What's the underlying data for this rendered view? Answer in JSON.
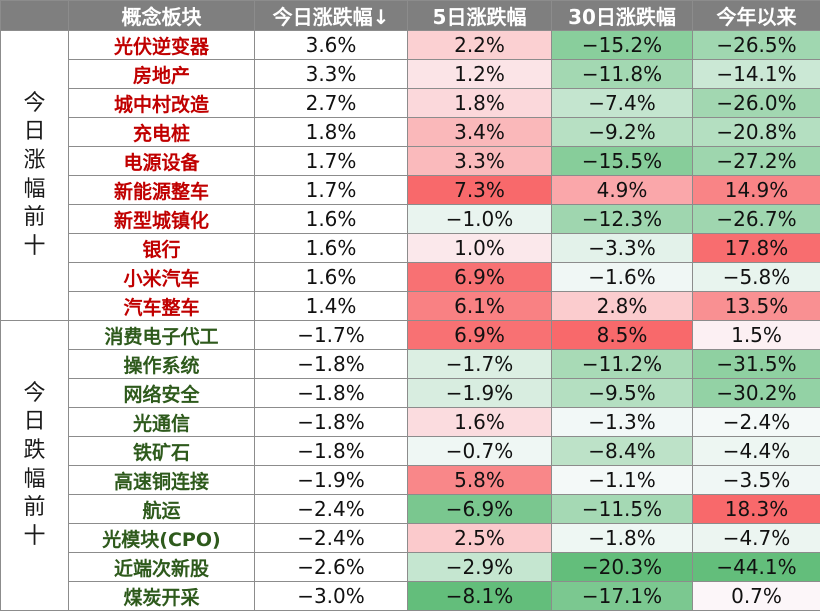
{
  "headers": [
    "概念板块",
    "今日涨跌幅↓",
    "5日涨跌幅",
    "30日涨跌幅",
    "今年以来"
  ],
  "sections": [
    {
      "label": "今日涨幅前十",
      "name_color": "#c00000",
      "rows": [
        {
          "name": "光伏逆变器",
          "d1": "3.6%",
          "d5": "2.2%",
          "d30": "−15.2%",
          "ytd": "−26.5%"
        },
        {
          "name": "房地产",
          "d1": "3.3%",
          "d5": "1.2%",
          "d30": "−11.8%",
          "ytd": "−14.1%"
        },
        {
          "name": "城中村改造",
          "d1": "2.7%",
          "d5": "1.8%",
          "d30": "−7.4%",
          "ytd": "−26.0%"
        },
        {
          "name": "充电桩",
          "d1": "1.8%",
          "d5": "3.4%",
          "d30": "−9.2%",
          "ytd": "−20.8%"
        },
        {
          "name": "电源设备",
          "d1": "1.7%",
          "d5": "3.3%",
          "d30": "−15.5%",
          "ytd": "−27.2%"
        },
        {
          "name": "新能源整车",
          "d1": "1.7%",
          "d5": "7.3%",
          "d30": "4.9%",
          "ytd": "14.9%"
        },
        {
          "name": "新型城镇化",
          "d1": "1.6%",
          "d5": "−1.0%",
          "d30": "−12.3%",
          "ytd": "−26.7%"
        },
        {
          "name": "银行",
          "d1": "1.6%",
          "d5": "1.0%",
          "d30": "−3.3%",
          "ytd": "17.8%"
        },
        {
          "name": "小米汽车",
          "d1": "1.6%",
          "d5": "6.9%",
          "d30": "−1.6%",
          "ytd": "−5.8%"
        },
        {
          "name": "汽车整车",
          "d1": "1.4%",
          "d5": "6.1%",
          "d30": "2.8%",
          "ytd": "13.5%"
        }
      ]
    },
    {
      "label": "今日跌幅前十",
      "name_color": "#2e5a1c",
      "rows": [
        {
          "name": "消费电子代工",
          "d1": "−1.7%",
          "d5": "6.9%",
          "d30": "8.5%",
          "ytd": "1.5%"
        },
        {
          "name": "操作系统",
          "d1": "−1.8%",
          "d5": "−1.7%",
          "d30": "−11.2%",
          "ytd": "−31.5%"
        },
        {
          "name": "网络安全",
          "d1": "−1.8%",
          "d5": "−1.9%",
          "d30": "−9.5%",
          "ytd": "−30.2%"
        },
        {
          "name": "光通信",
          "d1": "−1.8%",
          "d5": "1.6%",
          "d30": "−1.3%",
          "ytd": "−2.4%"
        },
        {
          "name": "铁矿石",
          "d1": "−1.8%",
          "d5": "−0.7%",
          "d30": "−8.4%",
          "ytd": "−4.4%"
        },
        {
          "name": "高速铜连接",
          "d1": "−1.9%",
          "d5": "5.8%",
          "d30": "−1.1%",
          "ytd": "−3.5%"
        },
        {
          "name": "航运",
          "d1": "−2.4%",
          "d5": "−6.9%",
          "d30": "−11.5%",
          "ytd": "18.3%"
        },
        {
          "name": "光模块(CPO)",
          "d1": "−2.4%",
          "d5": "2.5%",
          "d30": "−1.8%",
          "ytd": "−4.7%"
        },
        {
          "name": "近端次新股",
          "d1": "−2.6%",
          "d5": "−2.9%",
          "d30": "−20.3%",
          "ytd": "−44.1%"
        },
        {
          "name": "煤炭开采",
          "d1": "−3.0%",
          "d5": "−8.1%",
          "d30": "−17.1%",
          "ytd": "0.7%"
        }
      ]
    }
  ],
  "colors": {
    "header_bg": "#7f7f7f",
    "gain_cell": "#f8696b",
    "loss_cell": "#63be7b",
    "neutral_cell": "#fcfcff"
  }
}
